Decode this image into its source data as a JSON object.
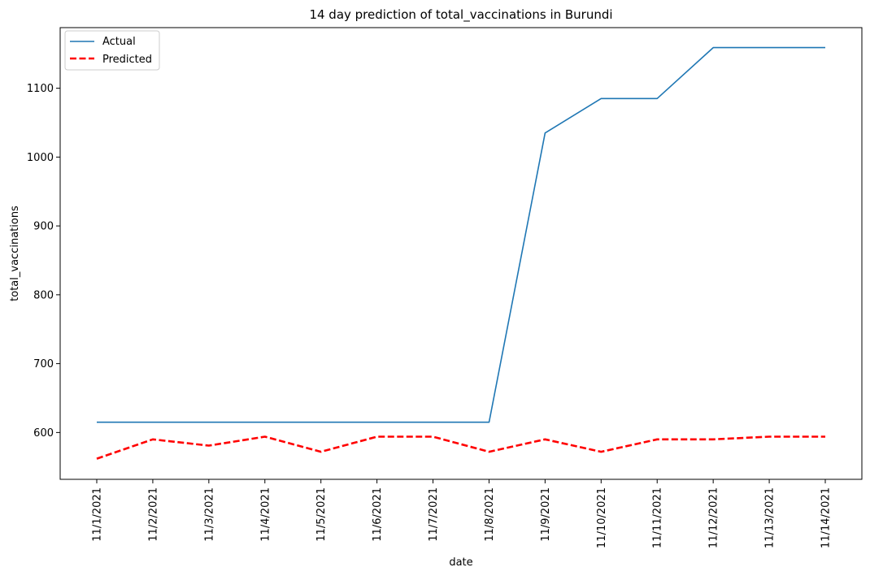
{
  "chart_data": {
    "type": "line",
    "title": "14 day prediction of total_vaccinations in Burundi",
    "xlabel": "date",
    "ylabel": "total_vaccinations",
    "categories": [
      "11/1/2021",
      "11/2/2021",
      "11/3/2021",
      "11/4/2021",
      "11/5/2021",
      "11/6/2021",
      "11/7/2021",
      "11/8/2021",
      "11/9/2021",
      "11/10/2021",
      "11/11/2021",
      "11/12/2021",
      "11/13/2021",
      "11/14/2021"
    ],
    "yticks": [
      600,
      700,
      800,
      900,
      1000,
      1100
    ],
    "ylim": [
      532,
      1188
    ],
    "grid": false,
    "legend_position": "upper-left",
    "series": [
      {
        "name": "Actual",
        "color": "#1f77b4",
        "style": "solid",
        "values": [
          615,
          615,
          615,
          615,
          615,
          615,
          615,
          615,
          1035,
          1085,
          1085,
          1159,
          1159,
          1159
        ]
      },
      {
        "name": "Predicted",
        "color": "#ff0000",
        "style": "dashed",
        "values": [
          562,
          590,
          581,
          594,
          572,
          594,
          594,
          572,
          590,
          572,
          590,
          590,
          594,
          594
        ]
      }
    ]
  }
}
